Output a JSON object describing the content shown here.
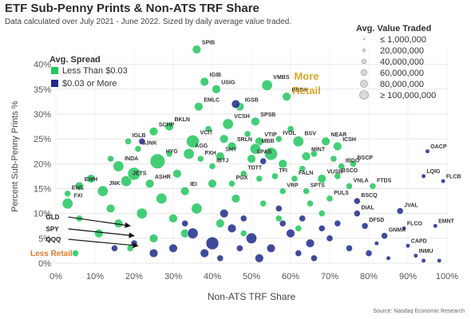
{
  "title": "ETF Sub-Penny Prints & Non-ATS TRF Share",
  "subtitle": "Data calculated over July 2021 - June 2022. Sized by daily average value traded.",
  "source": "Source: Nasdaq Economic Research",
  "colors": {
    "green": "#22c55e",
    "navy": "#1e2a8c",
    "gold": "#d9a62a",
    "orange": "#e07a2a",
    "grid": "#e6e6e6"
  },
  "chart_data": {
    "type": "scatter",
    "title": "ETF Sub-Penny Prints & Non-ATS TRF Share",
    "xlabel": "Non-ATS TRF Share",
    "ylabel": "Percent Sub-Penny Prints %",
    "xlim": [
      0,
      100
    ],
    "ylim": [
      0,
      43
    ],
    "x_ticks": [
      "0%",
      "10%",
      "20%",
      "30%",
      "40%",
      "50%",
      "60%",
      "70%",
      "80%",
      "90%",
      "100%"
    ],
    "y_ticks": [
      "0%",
      "5%",
      "10%",
      "15%",
      "20%",
      "25%",
      "30%",
      "35%",
      "40%"
    ],
    "spread_legend": {
      "title": "Avg. Spread",
      "items": [
        {
          "label": "Less Than $0.03",
          "color": "#22c55e"
        },
        {
          "label": "$0.03 or More",
          "color": "#1e2a8c"
        }
      ]
    },
    "size_legend": {
      "title": "Avg. Value Traded",
      "items": [
        "≤ 1,000,000",
        "20,000,000",
        "40,000,000",
        "60,000,000",
        "80,000,000",
        "≥ 100,000,000"
      ]
    },
    "annotations": {
      "more_retail": "More Retail",
      "less_retail": "Less Retail"
    },
    "series": [
      {
        "name": "Less Than $0.03",
        "color": "#22c55e",
        "points": [
          {
            "label": "SPIB",
            "x": 36,
            "y": 43,
            "s": 3
          },
          {
            "label": "IGIB",
            "x": 38,
            "y": 36.5,
            "s": 3
          },
          {
            "label": "USIG",
            "x": 41,
            "y": 35,
            "s": 3
          },
          {
            "label": "VMBS",
            "x": 54,
            "y": 35.8,
            "s": 4
          },
          {
            "label": "BNDX",
            "x": 59,
            "y": 33.5,
            "s": 3
          },
          {
            "label": "IGSB",
            "x": 47,
            "y": 31.5,
            "s": 3
          },
          {
            "label": "EMLC",
            "x": 36.5,
            "y": 31.5,
            "s": 3
          },
          {
            "label": "VCSH",
            "x": 44,
            "y": 28,
            "s": 4
          },
          {
            "label": "SPSB",
            "x": 51,
            "y": 28.5,
            "s": 3
          },
          {
            "label": "SCHP",
            "x": 25,
            "y": 26.5,
            "s": 3
          },
          {
            "label": "BKLN",
            "x": 29,
            "y": 27.5,
            "s": 3
          },
          {
            "label": "IGLB",
            "x": 18.5,
            "y": 24.5,
            "s": 2
          },
          {
            "label": "VCIT",
            "x": 35,
            "y": 24.5,
            "s": 5
          },
          {
            "label": "VTIP",
            "x": 52,
            "y": 24.5,
            "s": 3
          },
          {
            "label": "IVOL",
            "x": 57,
            "y": 25,
            "s": 2
          },
          {
            "label": "BSV",
            "x": 62,
            "y": 24.5,
            "s": 4
          },
          {
            "label": "NEAR",
            "x": 69,
            "y": 24.5,
            "s": 3
          },
          {
            "label": "ICSH",
            "x": 72,
            "y": 23.5,
            "s": 3
          },
          {
            "label": "SJNK",
            "x": 21,
            "y": 23,
            "s": 2
          },
          {
            "label": "SRLN",
            "x": 45,
            "y": 23.5,
            "s": 3
          },
          {
            "label": "MBB",
            "x": 51,
            "y": 23,
            "s": 4
          },
          {
            "label": "AGG",
            "x": 34,
            "y": 22,
            "s": 4
          },
          {
            "label": "SHY",
            "x": 42,
            "y": 21.5,
            "s": 3
          },
          {
            "label": "PXH",
            "x": 37,
            "y": 21,
            "s": 2
          },
          {
            "label": "HYG",
            "x": 26,
            "y": 20.5,
            "s": 6
          },
          {
            "label": "SPAB",
            "x": 50,
            "y": 21,
            "s": 3
          },
          {
            "label": "MINT",
            "x": 64,
            "y": 21.5,
            "s": 3
          },
          {
            "label": "IBTJ",
            "x": 40,
            "y": 19.5,
            "s": 2
          },
          {
            "label": "BSCP",
            "x": 76,
            "y": 20,
            "s": 2
          },
          {
            "label": "INDA",
            "x": 16,
            "y": 19.5,
            "s": 4
          },
          {
            "label": "IBDO",
            "x": 73,
            "y": 19.5,
            "s": 2
          },
          {
            "label": "TDTT",
            "x": 48,
            "y": 18,
            "s": 2
          },
          {
            "label": "TFI",
            "x": 56,
            "y": 17.5,
            "s": 2
          },
          {
            "label": "FALN",
            "x": 61,
            "y": 17,
            "s": 2
          },
          {
            "label": "VUSB",
            "x": 68,
            "y": 17,
            "s": 3
          },
          {
            "label": "BSCO",
            "x": 72,
            "y": 17.5,
            "s": 2
          },
          {
            "label": "JETS",
            "x": 18,
            "y": 16.5,
            "s": 4
          },
          {
            "label": "ASHR",
            "x": 24,
            "y": 16,
            "s": 3
          },
          {
            "label": "PGX",
            "x": 45,
            "y": 16,
            "s": 2
          },
          {
            "label": "IEI",
            "x": 33,
            "y": 14.5,
            "s": 3
          },
          {
            "label": "VRP",
            "x": 58,
            "y": 14.5,
            "s": 2
          },
          {
            "label": "SPTS",
            "x": 64,
            "y": 14.5,
            "s": 2
          },
          {
            "label": "VNLA",
            "x": 75,
            "y": 15.5,
            "s": 2
          },
          {
            "label": "FTDS",
            "x": 81,
            "y": 15.5,
            "s": 2
          },
          {
            "label": "EWH",
            "x": 6,
            "y": 15.5,
            "s": 3
          },
          {
            "label": "JNK",
            "x": 12,
            "y": 14.5,
            "s": 4
          },
          {
            "label": "EWL",
            "x": 3,
            "y": 14,
            "s": 2
          },
          {
            "label": "PULS",
            "x": 70,
            "y": 13,
            "s": 2
          },
          {
            "label": "FXI",
            "x": 3,
            "y": 12,
            "s": 4
          },
          {
            "x": 9,
            "y": 17,
            "s": 3
          },
          {
            "x": 14,
            "y": 21,
            "s": 2
          },
          {
            "x": 20,
            "y": 18,
            "s": 5
          },
          {
            "x": 27,
            "y": 13,
            "s": 4
          },
          {
            "x": 31,
            "y": 18,
            "s": 3
          },
          {
            "x": 39,
            "y": 27,
            "s": 2
          },
          {
            "x": 43,
            "y": 25,
            "s": 3
          },
          {
            "x": 49,
            "y": 26,
            "s": 2
          },
          {
            "x": 55,
            "y": 22,
            "s": 5
          },
          {
            "x": 58,
            "y": 20,
            "s": 3
          },
          {
            "x": 60,
            "y": 27,
            "s": 2
          },
          {
            "x": 63,
            "y": 19,
            "s": 2
          },
          {
            "x": 66,
            "y": 22,
            "s": 2
          },
          {
            "x": 71,
            "y": 21,
            "s": 2
          },
          {
            "x": 46,
            "y": 13,
            "s": 3
          },
          {
            "x": 53,
            "y": 12,
            "s": 2
          },
          {
            "x": 36,
            "y": 11,
            "s": 4
          },
          {
            "x": 30,
            "y": 9,
            "s": 3
          },
          {
            "x": 22,
            "y": 10,
            "s": 4
          },
          {
            "x": 16,
            "y": 8,
            "s": 3
          },
          {
            "x": 11,
            "y": 6,
            "s": 3
          },
          {
            "x": 6,
            "y": 9,
            "s": 2
          },
          {
            "x": 25,
            "y": 5,
            "s": 3
          },
          {
            "x": 42,
            "y": 8,
            "s": 3
          },
          {
            "x": 48,
            "y": 6,
            "s": 2
          },
          {
            "x": 57,
            "y": 9,
            "s": 2
          },
          {
            "x": 62,
            "y": 7,
            "s": 2
          },
          {
            "x": 68,
            "y": 10,
            "s": 2
          },
          {
            "x": 33,
            "y": 6,
            "s": 3
          },
          {
            "x": 19,
            "y": 3,
            "s": 2
          },
          {
            "x": 5,
            "y": 2,
            "s": 2
          },
          {
            "x": 14,
            "y": 11,
            "s": 3
          },
          {
            "x": 29,
            "y": 22,
            "s": 2
          },
          {
            "x": 40,
            "y": 16,
            "s": 3
          },
          {
            "x": 52,
            "y": 17,
            "s": 2
          },
          {
            "x": 65,
            "y": 12,
            "s": 2
          }
        ]
      },
      {
        "name": "$0.03 or More",
        "color": "#1e2a8c",
        "points": [
          {
            "label": "BSCQ",
            "x": 77,
            "y": 12.5,
            "s": 2
          },
          {
            "label": "DIAL",
            "x": 77,
            "y": 10,
            "s": 2
          },
          {
            "label": "JVAL",
            "x": 88,
            "y": 10.5,
            "s": 2
          },
          {
            "label": "OACP",
            "x": 95,
            "y": 22.5,
            "s": 1
          },
          {
            "label": "LQIG",
            "x": 94,
            "y": 17.5,
            "s": 1
          },
          {
            "label": "FLCB",
            "x": 99,
            "y": 16.5,
            "s": 1
          },
          {
            "label": "DFSD",
            "x": 79,
            "y": 7.5,
            "s": 2
          },
          {
            "label": "FLCO",
            "x": 89,
            "y": 7,
            "s": 1
          },
          {
            "label": "EMNT",
            "x": 97,
            "y": 7.5,
            "s": 1
          },
          {
            "label": "GNMA",
            "x": 84,
            "y": 5.5,
            "s": 2
          },
          {
            "label": "CAPD",
            "x": 90,
            "y": 3.5,
            "s": 1
          },
          {
            "label": "INMU",
            "x": 92,
            "y": 1.5,
            "s": 1
          },
          {
            "x": 46,
            "y": 32,
            "s": 3
          },
          {
            "x": 22,
            "y": 24.5,
            "s": 2
          },
          {
            "x": 53,
            "y": 20.5,
            "s": 2
          },
          {
            "x": 35,
            "y": 6,
            "s": 4
          },
          {
            "x": 40,
            "y": 4,
            "s": 5
          },
          {
            "x": 45,
            "y": 7,
            "s": 3
          },
          {
            "x": 50,
            "y": 5,
            "s": 4
          },
          {
            "x": 55,
            "y": 3,
            "s": 3
          },
          {
            "x": 60,
            "y": 6,
            "s": 3
          },
          {
            "x": 65,
            "y": 4,
            "s": 3
          },
          {
            "x": 70,
            "y": 5,
            "s": 2
          },
          {
            "x": 75,
            "y": 3,
            "s": 2
          },
          {
            "x": 80,
            "y": 2,
            "s": 2
          },
          {
            "x": 85,
            "y": 1,
            "s": 1
          },
          {
            "x": 30,
            "y": 3,
            "s": 3
          },
          {
            "x": 25,
            "y": 2,
            "s": 3
          },
          {
            "x": 20,
            "y": 4,
            "s": 2
          },
          {
            "x": 43,
            "y": 10,
            "s": 3
          },
          {
            "x": 48,
            "y": 9,
            "s": 2
          },
          {
            "x": 58,
            "y": 8,
            "s": 2
          },
          {
            "x": 63,
            "y": 9,
            "s": 2
          },
          {
            "x": 68,
            "y": 7,
            "s": 2
          },
          {
            "x": 72,
            "y": 8,
            "s": 2
          },
          {
            "x": 38,
            "y": 2,
            "s": 3
          },
          {
            "x": 52,
            "y": 1,
            "s": 3
          },
          {
            "x": 62,
            "y": 2,
            "s": 2
          },
          {
            "x": 33,
            "y": 8,
            "s": 2
          },
          {
            "x": 15,
            "y": 3,
            "s": 2
          },
          {
            "x": 57,
            "y": 11,
            "s": 2
          },
          {
            "x": 82,
            "y": 4,
            "s": 1
          },
          {
            "x": 94,
            "y": 0.5,
            "s": 1
          },
          {
            "x": 98,
            "y": 0.5,
            "s": 1
          },
          {
            "x": 47,
            "y": 3,
            "s": 2
          },
          {
            "x": 66,
            "y": 1,
            "s": 2
          },
          {
            "x": 42,
            "y": 1,
            "s": 2
          }
        ]
      }
    ],
    "arrows": [
      {
        "label": "GLD",
        "from": [
          -0.5,
          9.3
        ],
        "to": [
          19,
          7.5
        ]
      },
      {
        "label": "SPY",
        "from": [
          -0.5,
          6.9
        ],
        "to": [
          20,
          5.5
        ]
      },
      {
        "label": "QQQ",
        "from": [
          -0.5,
          4.8
        ],
        "to": [
          21,
          3.5
        ]
      }
    ]
  }
}
